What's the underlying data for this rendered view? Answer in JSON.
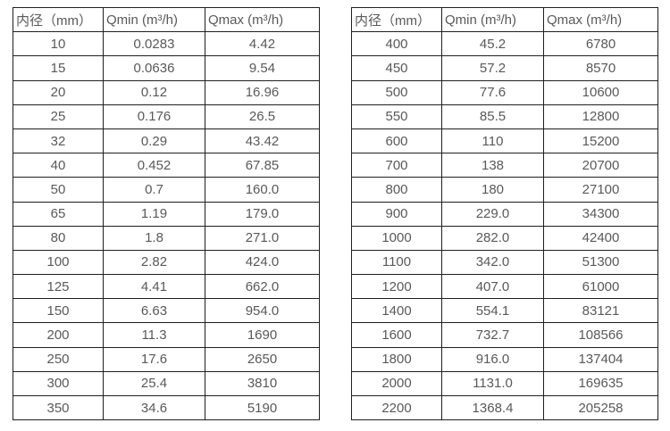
{
  "page": {
    "background_color": "#ffffff",
    "text_color": "#595959",
    "border_color": "#1f1f1f"
  },
  "tables": [
    {
      "name": "diameter-flow-table-small-sizes",
      "headers": [
        "内径（mm）",
        "Qmin (m³/h)",
        "Qmax (m³/h)"
      ],
      "rows": [
        [
          "10",
          "0.0283",
          "4.42"
        ],
        [
          "15",
          "0.0636",
          "9.54"
        ],
        [
          "20",
          "0.12",
          "16.96"
        ],
        [
          "25",
          "0.176",
          "26.5"
        ],
        [
          "32",
          "0.29",
          "43.42"
        ],
        [
          "40",
          "0.452",
          "67.85"
        ],
        [
          "50",
          "0.7",
          "160.0"
        ],
        [
          "65",
          "1.19",
          "179.0"
        ],
        [
          "80",
          "1.8",
          "271.0"
        ],
        [
          "100",
          "2.82",
          "424.0"
        ],
        [
          "125",
          "4.41",
          "662.0"
        ],
        [
          "150",
          "6.63",
          "954.0"
        ],
        [
          "200",
          "11.3",
          "1690"
        ],
        [
          "250",
          "17.6",
          "2650"
        ],
        [
          "300",
          "25.4",
          "3810"
        ],
        [
          "350",
          "34.6",
          "5190"
        ]
      ]
    },
    {
      "name": "diameter-flow-table-large-sizes",
      "headers": [
        "内径（mm）",
        "Qmin (m³/h)",
        "Qmax (m³/h)"
      ],
      "rows": [
        [
          "400",
          "45.2",
          "6780"
        ],
        [
          "450",
          "57.2",
          "8570"
        ],
        [
          "500",
          "77.6",
          "10600"
        ],
        [
          "550",
          "85.5",
          "12800"
        ],
        [
          "600",
          "110",
          "15200"
        ],
        [
          "700",
          "138",
          "20700"
        ],
        [
          "800",
          "180",
          "27100"
        ],
        [
          "900",
          "229.0",
          "34300"
        ],
        [
          "1000",
          "282.0",
          "42400"
        ],
        [
          "1100",
          "342.0",
          "51300"
        ],
        [
          "1200",
          "407.0",
          "61000"
        ],
        [
          "1400",
          "554.1",
          "83121"
        ],
        [
          "1600",
          "732.7",
          "108566"
        ],
        [
          "1800",
          "916.0",
          "137404"
        ],
        [
          "2000",
          "1131.0",
          "169635"
        ],
        [
          "2200",
          "1368.4",
          "205258"
        ]
      ]
    }
  ]
}
